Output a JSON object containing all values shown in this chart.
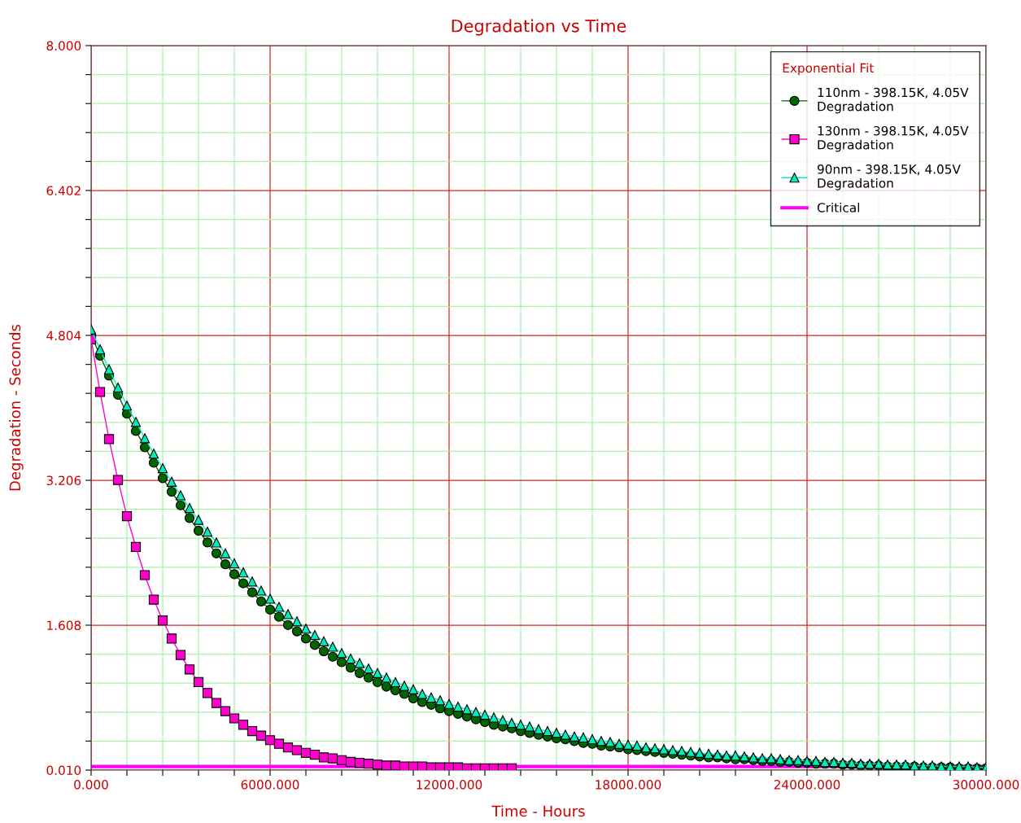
{
  "chart_data": {
    "type": "line",
    "title": "Degradation vs Time",
    "xlabel": "Time - Hours",
    "ylabel": "Degradation - Seconds",
    "legend_title": "Exponential Fit",
    "xlim": [
      0,
      30000
    ],
    "xticks": [
      {
        "value": 0,
        "label": "0.000"
      },
      {
        "value": 1200,
        "label": null
      },
      {
        "value": 2400,
        "label": null
      },
      {
        "value": 3600,
        "label": null
      },
      {
        "value": 4800,
        "label": null
      },
      {
        "value": 6000,
        "label": "6000.000"
      },
      {
        "value": 7200,
        "label": null
      },
      {
        "value": 8400,
        "label": null
      },
      {
        "value": 9600,
        "label": null
      },
      {
        "value": 10800,
        "label": null
      },
      {
        "value": 12000,
        "label": "12000.000"
      },
      {
        "value": 13200,
        "label": null
      },
      {
        "value": 14400,
        "label": null
      },
      {
        "value": 15600,
        "label": null
      },
      {
        "value": 16800,
        "label": null
      },
      {
        "value": 18000,
        "label": "18000.000"
      },
      {
        "value": 19200,
        "label": null
      },
      {
        "value": 20400,
        "label": null
      },
      {
        "value": 21600,
        "label": null
      },
      {
        "value": 22800,
        "label": null
      },
      {
        "value": 24000,
        "label": "24000.000"
      },
      {
        "value": 25200,
        "label": null
      },
      {
        "value": 26400,
        "label": null
      },
      {
        "value": 27600,
        "label": null
      },
      {
        "value": 28800,
        "label": null
      },
      {
        "value": 30000,
        "label": "30000.000"
      }
    ],
    "ylim": [
      0.01,
      8.0
    ],
    "yticks": [
      {
        "value": 0.01,
        "label": "0.010"
      },
      {
        "value": 0.33,
        "label": null
      },
      {
        "value": 0.649,
        "label": null
      },
      {
        "value": 0.969,
        "label": null
      },
      {
        "value": 1.288,
        "label": null
      },
      {
        "value": 1.608,
        "label": "1.608"
      },
      {
        "value": 1.928,
        "label": null
      },
      {
        "value": 2.247,
        "label": null
      },
      {
        "value": 2.567,
        "label": null
      },
      {
        "value": 2.886,
        "label": null
      },
      {
        "value": 3.206,
        "label": "3.206"
      },
      {
        "value": 3.526,
        "label": null
      },
      {
        "value": 3.845,
        "label": null
      },
      {
        "value": 4.165,
        "label": null
      },
      {
        "value": 4.484,
        "label": null
      },
      {
        "value": 4.804,
        "label": "4.804"
      },
      {
        "value": 5.124,
        "label": null
      },
      {
        "value": 5.443,
        "label": null
      },
      {
        "value": 5.763,
        "label": null
      },
      {
        "value": 6.082,
        "label": null
      },
      {
        "value": 6.402,
        "label": "6.402"
      },
      {
        "value": 6.722,
        "label": null
      },
      {
        "value": 7.041,
        "label": null
      },
      {
        "value": 7.361,
        "label": null
      },
      {
        "value": 7.68,
        "label": null
      },
      {
        "value": 8.0,
        "label": "8.000"
      }
    ],
    "grid": true,
    "legend": "top right",
    "x": [
      0,
      300,
      600,
      900,
      1200,
      1500,
      1800,
      2100,
      2400,
      2700,
      3000,
      3300,
      3600,
      3900,
      4200,
      4500,
      4800,
      5100,
      5400,
      5700,
      6000,
      6300,
      6600,
      6900,
      7200,
      7500,
      7800,
      8100,
      8400,
      8700,
      9000,
      9300,
      9600,
      9900,
      10200,
      10500,
      10800,
      11100,
      11400,
      11700,
      12000,
      12300,
      12600,
      12900,
      13200,
      13500,
      13800,
      14100,
      14400,
      14700,
      15000,
      15300,
      15600,
      15900,
      16200,
      16500,
      16800,
      17100,
      17400,
      17700,
      18000,
      18300,
      18600,
      18900,
      19200,
      19500,
      19800,
      20100,
      20400,
      20700,
      21000,
      21300,
      21600,
      21900,
      22200,
      22500,
      22800,
      23100,
      23400,
      23700,
      24000,
      24300,
      24600,
      24900,
      25200,
      25500,
      25800,
      26100,
      26400,
      26700,
      27000,
      27300,
      27600,
      27900,
      28200,
      28500,
      28800,
      29100,
      29400,
      29700,
      30000
    ],
    "series": [
      {
        "name": "110nm - 398.15K, 4.05V\nDegradation",
        "color": "#006400",
        "marker": "circle",
        "values": [
          4.81,
          4.58,
          4.36,
          4.15,
          3.94,
          3.75,
          3.57,
          3.4,
          3.23,
          3.08,
          2.93,
          2.79,
          2.65,
          2.52,
          2.4,
          2.28,
          2.17,
          2.07,
          1.97,
          1.87,
          1.78,
          1.7,
          1.61,
          1.54,
          1.46,
          1.39,
          1.32,
          1.26,
          1.2,
          1.14,
          1.08,
          1.03,
          0.98,
          0.93,
          0.89,
          0.85,
          0.8,
          0.76,
          0.73,
          0.69,
          0.66,
          0.63,
          0.6,
          0.57,
          0.54,
          0.51,
          0.49,
          0.47,
          0.44,
          0.42,
          0.4,
          0.38,
          0.36,
          0.35,
          0.33,
          0.31,
          0.3,
          0.28,
          0.27,
          0.26,
          0.24,
          0.23,
          0.22,
          0.21,
          0.2,
          0.19,
          0.18,
          0.17,
          0.16,
          0.15,
          0.15,
          0.14,
          0.13,
          0.13,
          0.12,
          0.11,
          0.11,
          0.1,
          0.1,
          0.09,
          0.09,
          0.08,
          0.08,
          0.08,
          0.07,
          0.07,
          0.06,
          0.06,
          0.06,
          0.05,
          0.05,
          0.05,
          0.05,
          0.04,
          0.04,
          0.04,
          0.04,
          0.03,
          0.03,
          0.03,
          0.03
        ]
      },
      {
        "name": "130nm - 398.15K, 4.05V\nDegradation",
        "color": "#ff00cc",
        "marker": "square",
        "x": [
          0,
          300,
          600,
          900,
          1200,
          1500,
          1800,
          2100,
          2400,
          2700,
          3000,
          3300,
          3600,
          3900,
          4200,
          4500,
          4800,
          5100,
          5400,
          5700,
          6000,
          6300,
          6600,
          6900,
          7200,
          7500,
          7800,
          8100,
          8400,
          8700,
          9000,
          9300,
          9600,
          9900,
          10200,
          10500,
          10800,
          11100,
          11400,
          11700,
          12000,
          12300,
          12600,
          12900,
          13200,
          13500,
          13800,
          14100
        ],
        "values": [
          4.76,
          4.18,
          3.66,
          3.21,
          2.81,
          2.47,
          2.16,
          1.89,
          1.66,
          1.46,
          1.28,
          1.12,
          0.98,
          0.86,
          0.75,
          0.66,
          0.58,
          0.51,
          0.44,
          0.39,
          0.34,
          0.3,
          0.26,
          0.23,
          0.2,
          0.18,
          0.15,
          0.14,
          0.12,
          0.1,
          0.09,
          0.08,
          0.07,
          0.06,
          0.06,
          0.05,
          0.05,
          0.05,
          0.04,
          0.04,
          0.04,
          0.04,
          0.03,
          0.03,
          0.03,
          0.03,
          0.03,
          0.03
        ]
      },
      {
        "name": "90nm - 398.15K, 4.05V\nDegradation",
        "color": "#00eebb",
        "marker": "triangle",
        "values": [
          4.87,
          4.65,
          4.43,
          4.23,
          4.03,
          3.85,
          3.67,
          3.5,
          3.34,
          3.19,
          3.04,
          2.9,
          2.77,
          2.64,
          2.52,
          2.4,
          2.29,
          2.19,
          2.09,
          1.99,
          1.9,
          1.81,
          1.73,
          1.65,
          1.57,
          1.5,
          1.43,
          1.37,
          1.3,
          1.24,
          1.19,
          1.13,
          1.08,
          1.03,
          0.98,
          0.94,
          0.9,
          0.85,
          0.81,
          0.78,
          0.74,
          0.71,
          0.68,
          0.65,
          0.62,
          0.59,
          0.56,
          0.53,
          0.51,
          0.49,
          0.46,
          0.44,
          0.42,
          0.4,
          0.38,
          0.37,
          0.35,
          0.33,
          0.32,
          0.3,
          0.29,
          0.28,
          0.26,
          0.25,
          0.24,
          0.23,
          0.22,
          0.21,
          0.2,
          0.19,
          0.18,
          0.17,
          0.17,
          0.16,
          0.15,
          0.14,
          0.14,
          0.13,
          0.12,
          0.12,
          0.11,
          0.11,
          0.1,
          0.1,
          0.09,
          0.09,
          0.08,
          0.08,
          0.08,
          0.07,
          0.07,
          0.07,
          0.06,
          0.06,
          0.06,
          0.05,
          0.05,
          0.05,
          0.05,
          0.04,
          0.04
        ]
      },
      {
        "name": "Critical",
        "color": "#ff00ff",
        "marker": "none",
        "x": [
          0,
          30000
        ],
        "values": [
          0.05,
          0.05
        ]
      }
    ]
  }
}
